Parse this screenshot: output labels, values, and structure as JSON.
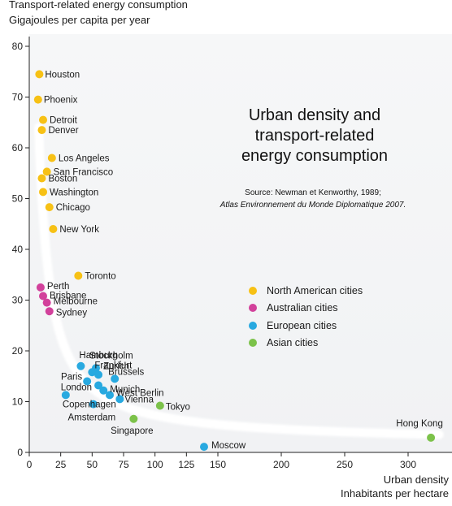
{
  "colors": {
    "north_american": "#f7c115",
    "australian": "#d2419b",
    "european": "#28a9e0",
    "asian": "#7cc24a",
    "background": "#f1f2f4",
    "trend": "#ffffff"
  },
  "chart_data": {
    "type": "scatter",
    "title": "Urban density and transport-related energy consumption",
    "title_lines": [
      "Urban density and",
      "transport-related",
      "energy consumption"
    ],
    "source_line1": "Source: Newman et Kenworthy, 1989;",
    "source_line2": "Atlas Environnement du Monde Diplomatique 2007.",
    "ylabel_line1": "Transport-related energy consumption",
    "ylabel_line2": "Gigajoules per capita per year",
    "xlabel_line1": "Urban density",
    "xlabel_line2": "Inhabitants per hectare",
    "xlim": [
      0,
      330
    ],
    "ylim": [
      0,
      80
    ],
    "x_ticks": [
      0,
      25,
      50,
      75,
      100,
      125,
      150,
      200,
      250,
      300
    ],
    "y_ticks": [
      0,
      10,
      20,
      30,
      40,
      50,
      60,
      70,
      80
    ],
    "grid": false,
    "legend_placement": "center-right",
    "trend_line": "curve",
    "legend": [
      {
        "group": "north_american",
        "label": "North American cities"
      },
      {
        "group": "australian",
        "label": "Australian cities"
      },
      {
        "group": "european",
        "label": "European cities"
      },
      {
        "group": "asian",
        "label": "Asian cities"
      }
    ],
    "points": [
      {
        "name": "Houston",
        "group": "north_american",
        "x": 8,
        "y": 74.5
      },
      {
        "name": "Phoenix",
        "group": "north_american",
        "x": 7,
        "y": 69.5
      },
      {
        "name": "Detroit",
        "group": "north_american",
        "x": 11,
        "y": 65.5
      },
      {
        "name": "Denver",
        "group": "north_american",
        "x": 10,
        "y": 63.5
      },
      {
        "name": "Los Angeles",
        "group": "north_american",
        "x": 18,
        "y": 58
      },
      {
        "name": "San Francisco",
        "group": "north_american",
        "x": 14,
        "y": 55.3
      },
      {
        "name": "Boston",
        "group": "north_american",
        "x": 10,
        "y": 54
      },
      {
        "name": "Washington",
        "group": "north_american",
        "x": 11,
        "y": 51.3
      },
      {
        "name": "Chicago",
        "group": "north_american",
        "x": 16,
        "y": 48.3
      },
      {
        "name": "New York",
        "group": "north_american",
        "x": 19,
        "y": 44
      },
      {
        "name": "Toronto",
        "group": "north_american",
        "x": 39,
        "y": 34.8
      },
      {
        "name": "Perth",
        "group": "australian",
        "x": 9,
        "y": 32.5
      },
      {
        "name": "Brisbane",
        "group": "australian",
        "x": 11,
        "y": 30.8
      },
      {
        "name": "Melbourne",
        "group": "australian",
        "x": 14,
        "y": 29.5
      },
      {
        "name": "Sydney",
        "group": "australian",
        "x": 16,
        "y": 27.8
      },
      {
        "name": "Hamburg",
        "group": "european",
        "x": 41,
        "y": 17
      },
      {
        "name": "Stockholm",
        "group": "european",
        "x": 53,
        "y": 16.6
      },
      {
        "name": "Frankfurt",
        "group": "european",
        "x": 50,
        "y": 15.8
      },
      {
        "name": "Zurich",
        "group": "european",
        "x": 55,
        "y": 15.3
      },
      {
        "name": "Brussels",
        "group": "european",
        "x": 68,
        "y": 14.5
      },
      {
        "name": "Paris",
        "group": "european",
        "x": 46,
        "y": 14
      },
      {
        "name": "London",
        "group": "european",
        "x": 55,
        "y": 13.2
      },
      {
        "name": "Munich",
        "group": "european",
        "x": 59,
        "y": 12.2
      },
      {
        "name": "West Berlin",
        "group": "european",
        "x": 64,
        "y": 11.3
      },
      {
        "name": "Copenhagen",
        "group": "european",
        "x": 29,
        "y": 11.3
      },
      {
        "name": "Vienna",
        "group": "european",
        "x": 72,
        "y": 10.5
      },
      {
        "name": "Amsterdam",
        "group": "european",
        "x": 51,
        "y": 9.5
      },
      {
        "name": "Tokyo",
        "group": "asian",
        "x": 104,
        "y": 9.2
      },
      {
        "name": "Singapore",
        "group": "asian",
        "x": 83,
        "y": 6.6
      },
      {
        "name": "Moscow",
        "group": "european",
        "x": 139,
        "y": 1.1
      },
      {
        "name": "Hong Kong",
        "group": "asian",
        "x": 318,
        "y": 2.9
      }
    ]
  }
}
